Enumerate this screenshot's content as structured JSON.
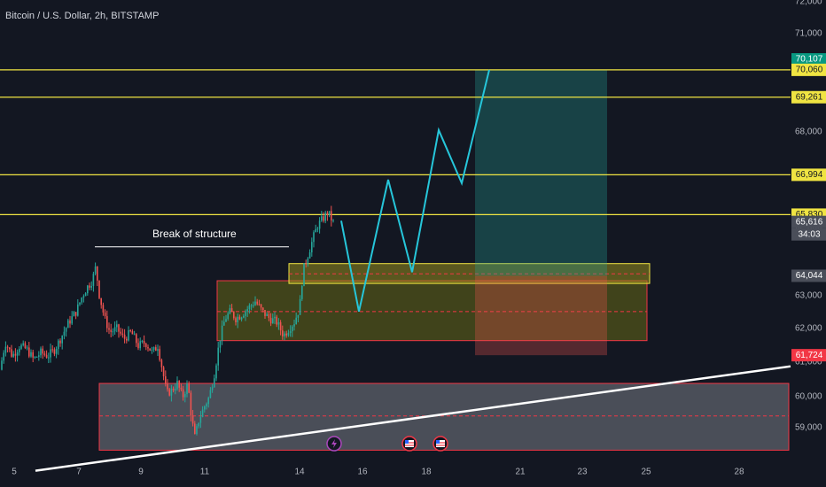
{
  "header": {
    "title": "Bitcoin / U.S. Dollar, 2h, BITSTAMP"
  },
  "chart_data": {
    "type": "candlestick",
    "symbol": "Bitcoin / U.S. Dollar",
    "interval": "2h",
    "exchange": "BITSTAMP",
    "x_ticks": [
      "5",
      "7",
      "9",
      "11",
      "14",
      "16",
      "18",
      "21",
      "23",
      "25",
      "28"
    ],
    "y_ticks": [
      "59,000",
      "60,000",
      "61,000",
      "62,000",
      "63,000",
      "65,000",
      "68,000",
      "71,000",
      "72,000"
    ],
    "ylim": [
      58650,
      72100
    ],
    "horizontal_levels": [
      70060,
      69261,
      66994,
      65830
    ],
    "price_tags": [
      {
        "label": "70,107",
        "value": 70107,
        "bg": "#089981",
        "fg": "#ffffff"
      },
      {
        "label": "70,060",
        "value": 70060,
        "bg": "#f0e442",
        "fg": "#131722"
      },
      {
        "label": "69,261",
        "value": 69261,
        "bg": "#f0e442",
        "fg": "#131722"
      },
      {
        "label": "66,994",
        "value": 66994,
        "bg": "#f0e442",
        "fg": "#131722"
      },
      {
        "label": "65,830",
        "value": 65830,
        "bg": "#f0e442",
        "fg": "#131722"
      },
      {
        "label": "65,616",
        "value": 65616,
        "bg": "#4a4e59",
        "fg": "#ffffff"
      },
      {
        "label": "34:03",
        "value": 65330,
        "bg": "#4a4e59",
        "fg": "#ffffff"
      },
      {
        "label": "64,044",
        "value": 64044,
        "bg": "#4a4e59",
        "fg": "#ffffff"
      },
      {
        "label": "61,724",
        "value": 61724,
        "bg": "#f23645",
        "fg": "#ffffff"
      }
    ],
    "annotations": [
      {
        "text": "Break of structure",
        "value": 65200
      }
    ],
    "zones": [
      {
        "name": "demand-zone",
        "top": 60900,
        "bottom": 58950,
        "mid": 59950,
        "fill": "rgba(178,181,190,0.35)",
        "stroke": "#f23645"
      },
      {
        "name": "order-block",
        "top": 63900,
        "bottom": 62150,
        "mid": 63000,
        "fill": "rgba(120,123,20,0.45)",
        "stroke": "#f23645"
      },
      {
        "name": "fvg-zone",
        "top": 64400,
        "bottom": 63820,
        "mid": 64100,
        "fill": "rgba(150,140,30,0.55)",
        "stroke": "#f0e442"
      }
    ],
    "position": {
      "entry": 64044,
      "target": 70060,
      "stop": 61724
    },
    "trend_line": {
      "from": 58350,
      "to": 61400
    },
    "projection_path": [
      65650,
      63000,
      66850,
      64150,
      68300,
      66750,
      70060
    ],
    "events": [
      "lightning",
      "us-flag",
      "us-flag"
    ],
    "colors": {
      "background": "#131722",
      "up": "#26a69a",
      "down": "#ef5350",
      "level": "#f0e442",
      "projection": "#26c6da",
      "trend": "#ffffff",
      "target_zone": "rgba(38,166,154,0.30)",
      "stop_zone": "rgba(239,83,80,0.30)"
    }
  }
}
